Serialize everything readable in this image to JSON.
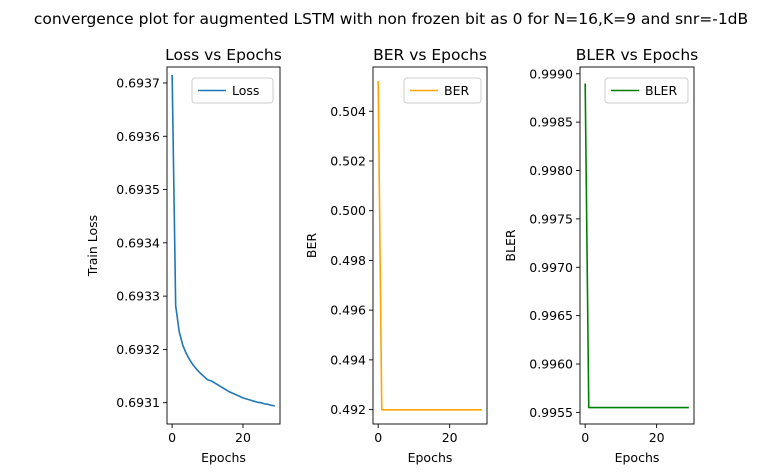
{
  "suptitle": "convergence plot for augmented LSTM with non frozen bit as 0 for N=16,K=9 and snr=-1dB",
  "chart_data": [
    {
      "type": "line",
      "title": "Loss vs Epochs",
      "xlabel": "Epochs",
      "ylabel": "Train Loss",
      "xlim": [
        -1.45,
        30.45
      ],
      "ylim": [
        0.69306,
        0.69373
      ],
      "xticks": [
        0,
        20
      ],
      "yticks": [
        0.6931,
        0.6932,
        0.6933,
        0.6934,
        0.6935,
        0.6936,
        0.6937
      ],
      "ytick_labels": [
        "0.6931",
        "0.6932",
        "0.6933",
        "0.6934",
        "0.6935",
        "0.6936",
        "0.6937"
      ],
      "legend": "top-right",
      "series": [
        {
          "name": "Loss",
          "color": "#1f77b4",
          "x": [
            0,
            1,
            2,
            3,
            4,
            5,
            6,
            7,
            8,
            9,
            10,
            11,
            12,
            13,
            14,
            15,
            16,
            17,
            18,
            19,
            20,
            21,
            22,
            23,
            24,
            25,
            26,
            27,
            28,
            29
          ],
          "values": [
            0.693715,
            0.693282,
            0.693233,
            0.693208,
            0.693192,
            0.69318,
            0.69317,
            0.693162,
            0.693155,
            0.693149,
            0.693143,
            0.693141,
            0.693137,
            0.693133,
            0.693129,
            0.693125,
            0.693121,
            0.693118,
            0.693115,
            0.693112,
            0.693109,
            0.693107,
            0.693105,
            0.693103,
            0.693101,
            0.6931,
            0.693098,
            0.693097,
            0.693095,
            0.693094
          ]
        }
      ]
    },
    {
      "type": "line",
      "title": "BER vs Epochs",
      "xlabel": "Epochs",
      "ylabel": "BER",
      "xlim": [
        -1.45,
        30.45
      ],
      "ylim": [
        0.49142,
        0.50578
      ],
      "xticks": [
        0,
        20
      ],
      "yticks": [
        0.492,
        0.494,
        0.496,
        0.498,
        0.5,
        0.502,
        0.504
      ],
      "ytick_labels": [
        "0.492",
        "0.494",
        "0.496",
        "0.498",
        "0.500",
        "0.502",
        "0.504"
      ],
      "legend": "top-right",
      "series": [
        {
          "name": "BER",
          "color": "#ffa500",
          "x": [
            0,
            1,
            2,
            3,
            4,
            5,
            6,
            7,
            8,
            9,
            10,
            11,
            12,
            13,
            14,
            15,
            16,
            17,
            18,
            19,
            20,
            21,
            22,
            23,
            24,
            25,
            26,
            27,
            28,
            29
          ],
          "values": [
            0.50521,
            0.49199,
            0.49199,
            0.49199,
            0.49199,
            0.49199,
            0.49199,
            0.49199,
            0.49199,
            0.49199,
            0.49199,
            0.49199,
            0.49199,
            0.49199,
            0.49199,
            0.49199,
            0.49199,
            0.49199,
            0.49199,
            0.49199,
            0.49199,
            0.49199,
            0.49199,
            0.49199,
            0.49199,
            0.49199,
            0.49199,
            0.49199,
            0.49199,
            0.49199
          ]
        }
      ]
    },
    {
      "type": "line",
      "title": "BLER vs Epochs",
      "xlabel": "Epochs",
      "ylabel": "BLER",
      "xlim": [
        -1.45,
        30.45
      ],
      "ylim": [
        0.99538,
        0.99907
      ],
      "xticks": [
        0,
        20
      ],
      "yticks": [
        0.9955,
        0.996,
        0.9965,
        0.997,
        0.9975,
        0.998,
        0.9985,
        0.999
      ],
      "ytick_labels": [
        "0.9955",
        "0.9960",
        "0.9965",
        "0.9970",
        "0.9975",
        "0.9980",
        "0.9985",
        "0.9990"
      ],
      "legend": "top-right",
      "series": [
        {
          "name": "BLER",
          "color": "#008000",
          "x": [
            0,
            1,
            2,
            3,
            4,
            5,
            6,
            7,
            8,
            9,
            10,
            11,
            12,
            13,
            14,
            15,
            16,
            17,
            18,
            19,
            20,
            21,
            22,
            23,
            24,
            25,
            26,
            27,
            28,
            29
          ],
          "values": [
            0.9989,
            0.99555,
            0.99555,
            0.99555,
            0.99555,
            0.99555,
            0.99555,
            0.99555,
            0.99555,
            0.99555,
            0.99555,
            0.99555,
            0.99555,
            0.99555,
            0.99555,
            0.99555,
            0.99555,
            0.99555,
            0.99555,
            0.99555,
            0.99555,
            0.99555,
            0.99555,
            0.99555,
            0.99555,
            0.99555,
            0.99555,
            0.99555,
            0.99555,
            0.99555
          ]
        }
      ]
    }
  ]
}
